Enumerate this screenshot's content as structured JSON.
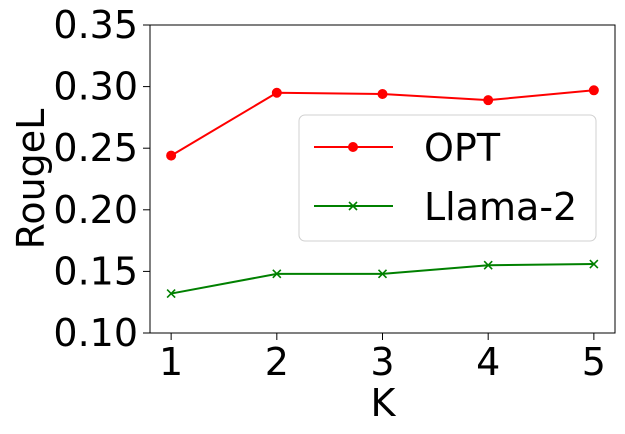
{
  "chart_data": {
    "type": "line",
    "x": [
      1,
      2,
      3,
      4,
      5
    ],
    "xlabel": "K",
    "ylabel": "RougeL",
    "xlim": [
      0.8,
      5.2
    ],
    "ylim": [
      0.1,
      0.35
    ],
    "x_ticks": [
      "1",
      "2",
      "3",
      "4",
      "5"
    ],
    "y_ticks": [
      "0.10",
      "0.15",
      "0.20",
      "0.25",
      "0.30",
      "0.35"
    ],
    "grid": false,
    "legend_position": "center-right",
    "series": [
      {
        "name": "OPT",
        "values": [
          0.244,
          0.295,
          0.294,
          0.289,
          0.297
        ],
        "color": "#ff0000",
        "marker": "circle"
      },
      {
        "name": "Llama-2",
        "values": [
          0.132,
          0.148,
          0.148,
          0.155,
          0.156
        ],
        "color": "#008000",
        "marker": "x"
      }
    ]
  }
}
